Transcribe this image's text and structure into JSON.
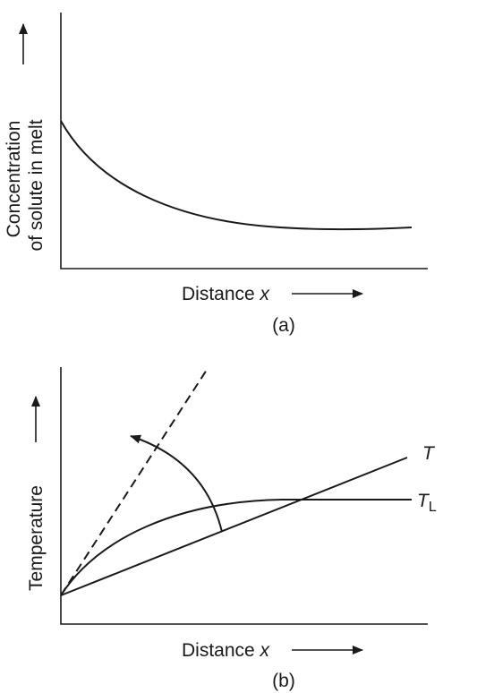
{
  "panel_a": {
    "y_label_line1": "Concentration",
    "y_label_line2": "of solute in melt",
    "x_label_prefix": "Distance ",
    "x_label_var": "x",
    "caption": "(a)"
  },
  "panel_b": {
    "y_label": "Temperature",
    "x_label_prefix": "Distance ",
    "x_label_var": "x",
    "caption": "(b)",
    "curve_T_label": "T",
    "curve_TL_label": "T",
    "curve_TL_subscript": "L"
  }
}
